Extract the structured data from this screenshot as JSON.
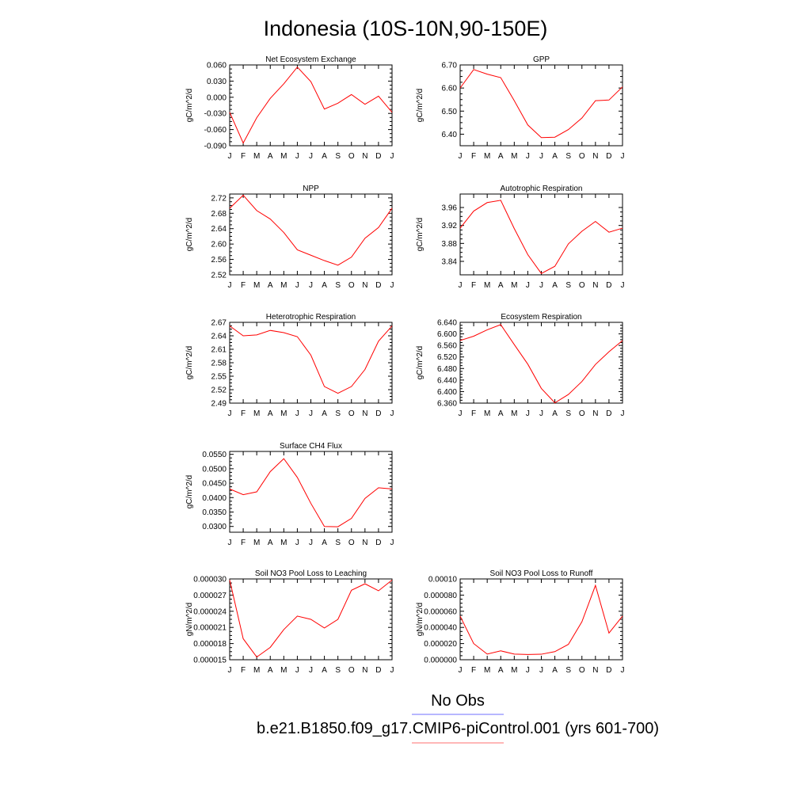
{
  "title": "Indonesia (10S-10N,90-150E)",
  "months": [
    "J",
    "F",
    "M",
    "A",
    "M",
    "J",
    "J",
    "A",
    "S",
    "O",
    "N",
    "D",
    "J"
  ],
  "legend": {
    "obs_label": "No Obs",
    "obs_color": "#6f6fff",
    "model_label": "b.e21.B1850.f09_g17.CMIP6-piControl.001 (yrs 601-700)",
    "model_color": "#ff6f6f"
  },
  "chart_data": [
    {
      "type": "line",
      "title": "Net Ecosystem Exchange",
      "ylabel": "gC/m^2/d",
      "ylim": [
        -0.09,
        0.06
      ],
      "yticks": [
        -0.09,
        -0.06,
        -0.03,
        0.0,
        0.03,
        0.06
      ],
      "ytick_labels": [
        "-0.090",
        "-0.060",
        "-0.030",
        "0.000",
        "0.030",
        "0.060"
      ],
      "series": [
        {
          "name": "b.e21.B1850.f09_g17.CMIP6-piControl.001",
          "color": "#ff0000",
          "values": [
            -0.028,
            -0.085,
            -0.038,
            -0.002,
            0.025,
            0.056,
            0.029,
            -0.022,
            -0.011,
            0.005,
            -0.013,
            0.002,
            -0.028
          ]
        }
      ]
    },
    {
      "type": "line",
      "title": "GPP",
      "ylabel": "gC/m^2/d",
      "ylim": [
        6.35,
        6.7
      ],
      "yticks": [
        6.4,
        6.5,
        6.6,
        6.7
      ],
      "ytick_labels": [
        "6.40",
        "6.50",
        "6.60",
        "6.70"
      ],
      "series": [
        {
          "name": "b.e21.B1850.f09_g17.CMIP6-piControl.001",
          "color": "#ff0000",
          "values": [
            6.6,
            6.68,
            6.66,
            6.645,
            6.545,
            6.44,
            6.385,
            6.387,
            6.42,
            6.47,
            6.545,
            6.548,
            6.605
          ]
        }
      ]
    },
    {
      "type": "line",
      "title": "NPP",
      "ylabel": "gC/m^2/d",
      "ylim": [
        2.52,
        2.73
      ],
      "yticks": [
        2.52,
        2.56,
        2.6,
        2.64,
        2.68,
        2.72
      ],
      "ytick_labels": [
        "2.52",
        "2.56",
        "2.60",
        "2.64",
        "2.68",
        "2.72"
      ],
      "series": [
        {
          "name": "b.e21.B1850.f09_g17.CMIP6-piControl.001",
          "color": "#ff0000",
          "values": [
            2.693,
            2.727,
            2.687,
            2.665,
            2.63,
            2.585,
            2.571,
            2.557,
            2.545,
            2.566,
            2.615,
            2.643,
            2.693
          ]
        }
      ]
    },
    {
      "type": "line",
      "title": "Autotrophic Respiration",
      "ylabel": "gC/m^2/d",
      "ylim": [
        3.81,
        3.99
      ],
      "yticks": [
        3.84,
        3.88,
        3.92,
        3.96
      ],
      "ytick_labels": [
        "3.84",
        "3.88",
        "3.92",
        "3.96"
      ],
      "series": [
        {
          "name": "b.e21.B1850.f09_g17.CMIP6-piControl.001",
          "color": "#ff0000",
          "values": [
            3.914,
            3.952,
            3.971,
            3.976,
            3.913,
            3.855,
            3.813,
            3.829,
            3.879,
            3.907,
            3.929,
            3.905,
            3.914
          ]
        }
      ]
    },
    {
      "type": "line",
      "title": "Heterotrophic Respiration",
      "ylabel": "gC/m^2/d",
      "ylim": [
        2.49,
        2.67
      ],
      "yticks": [
        2.49,
        2.52,
        2.55,
        2.58,
        2.61,
        2.64,
        2.67
      ],
      "ytick_labels": [
        "2.49",
        "2.52",
        "2.55",
        "2.58",
        "2.61",
        "2.64",
        "2.67"
      ],
      "series": [
        {
          "name": "b.e21.B1850.f09_g17.CMIP6-piControl.001",
          "color": "#ff0000",
          "values": [
            2.662,
            2.64,
            2.642,
            2.652,
            2.647,
            2.638,
            2.597,
            2.527,
            2.512,
            2.527,
            2.565,
            2.628,
            2.662
          ]
        }
      ]
    },
    {
      "type": "line",
      "title": "Ecosystem Respiration",
      "ylabel": "gC/m^2/d",
      "ylim": [
        6.36,
        6.64
      ],
      "yticks": [
        6.36,
        6.4,
        6.44,
        6.48,
        6.52,
        6.56,
        6.6,
        6.64
      ],
      "ytick_labels": [
        "6.360",
        "6.400",
        "6.440",
        "6.480",
        "6.520",
        "6.560",
        "6.600",
        "6.640"
      ],
      "series": [
        {
          "name": "b.e21.B1850.f09_g17.CMIP6-piControl.001",
          "color": "#ff0000",
          "values": [
            6.577,
            6.592,
            6.614,
            6.632,
            6.563,
            6.495,
            6.411,
            6.361,
            6.39,
            6.435,
            6.494,
            6.538,
            6.577
          ]
        }
      ]
    },
    {
      "type": "line",
      "title": "Surface CH4 Flux",
      "ylabel": "gC/m^2/d",
      "ylim": [
        0.028,
        0.056
      ],
      "yticks": [
        0.03,
        0.035,
        0.04,
        0.045,
        0.05,
        0.055
      ],
      "ytick_labels": [
        "0.0300",
        "0.0350",
        "0.0400",
        "0.0450",
        "0.0500",
        "0.0550"
      ],
      "series": [
        {
          "name": "b.e21.B1850.f09_g17.CMIP6-piControl.001",
          "color": "#ff0000",
          "values": [
            0.043,
            0.041,
            0.042,
            0.049,
            0.0535,
            0.047,
            0.038,
            0.03,
            0.0299,
            0.0328,
            0.0397,
            0.0434,
            0.043
          ]
        }
      ]
    },
    {
      "type": "line",
      "title": "Soil NO3 Pool Loss to Leaching",
      "ylabel": "gN/m^2/d",
      "ylim": [
        1.5e-05,
        3e-05
      ],
      "yticks": [
        1.5e-05,
        1.8e-05,
        2.1e-05,
        2.4e-05,
        2.7e-05,
        3e-05
      ],
      "ytick_labels": [
        "0.000015",
        "0.000018",
        "0.000021",
        "0.000024",
        "0.000027",
        "0.000030"
      ],
      "series": [
        {
          "name": "b.e21.B1850.f09_g17.CMIP6-piControl.001",
          "color": "#ff0000",
          "values": [
            2.98e-05,
            1.89e-05,
            1.55e-05,
            1.73e-05,
            2.06e-05,
            2.31e-05,
            2.25e-05,
            2.09e-05,
            2.25e-05,
            2.79e-05,
            2.91e-05,
            2.78e-05,
            2.98e-05
          ]
        }
      ]
    },
    {
      "type": "line",
      "title": "Soil NO3 Pool Loss to Runoff",
      "ylabel": "gN/m^2/d",
      "ylim": [
        0.0,
        0.0001
      ],
      "yticks": [
        0.0,
        2e-05,
        4e-05,
        6e-05,
        8e-05,
        0.0001
      ],
      "ytick_labels": [
        "0.000000",
        "0.000020",
        "0.000040",
        "0.000060",
        "0.000080",
        "0.00010"
      ],
      "series": [
        {
          "name": "b.e21.B1850.f09_g17.CMIP6-piControl.001",
          "color": "#ff0000",
          "values": [
            5.4e-05,
            2e-05,
            7e-06,
            1.1e-05,
            7e-06,
            6.5e-06,
            6.8e-06,
            1e-05,
            1.9e-05,
            4.7e-05,
            9.2e-05,
            3.3e-05,
            5.4e-05
          ]
        }
      ]
    }
  ]
}
